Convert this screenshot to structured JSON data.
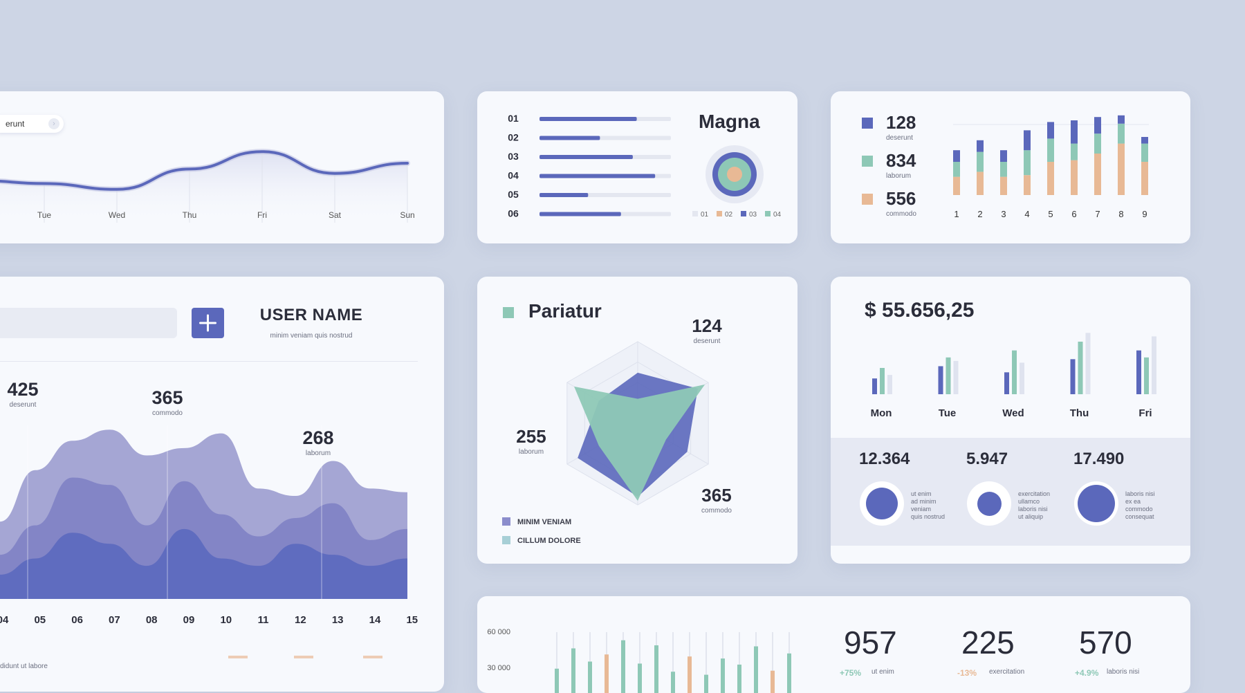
{
  "colors": {
    "primary": "#5b68bb",
    "teal": "#8ec8b6",
    "peach": "#e8b995",
    "light": "#dfe3ef",
    "lavender": "#a6a9d6"
  },
  "wave_card": {
    "pill_label": "erunt",
    "days": [
      "Tue",
      "Wed",
      "Thu",
      "Fri",
      "Sat",
      "Sun"
    ]
  },
  "magna_card": {
    "title": "Magna",
    "rows": [
      {
        "label": "01",
        "value": 0.74
      },
      {
        "label": "02",
        "value": 0.46
      },
      {
        "label": "03",
        "value": 0.71
      },
      {
        "label": "04",
        "value": 0.88
      },
      {
        "label": "05",
        "value": 0.37
      },
      {
        "label": "06",
        "value": 0.62
      }
    ],
    "legend": [
      "01",
      "02",
      "03",
      "04"
    ]
  },
  "stack_card": {
    "stats": [
      {
        "value": "128",
        "label": "deserunt"
      },
      {
        "value": "834",
        "label": "laborum"
      },
      {
        "value": "556",
        "label": "commodo"
      }
    ]
  },
  "user_card": {
    "name": "USER NAME",
    "subtitle": "minim veniam quis nostrud",
    "add_icon": "plus-icon",
    "peaks": [
      {
        "value": "425",
        "label": "deserunt"
      },
      {
        "value": "365",
        "label": "commodo"
      },
      {
        "value": "268",
        "label": "laborum"
      }
    ],
    "footer": "didunt ut labore"
  },
  "pariatur_card": {
    "title": "Pariatur",
    "labels": [
      {
        "value": "124",
        "label": "deserunt"
      },
      {
        "value": "255",
        "label": "laborum"
      },
      {
        "value": "365",
        "label": "commodo"
      }
    ],
    "legend": [
      "MINIM VENIAM",
      "CILLUM DOLORE"
    ]
  },
  "money_card": {
    "amount": "$ 55.656,25",
    "stats": [
      {
        "value": "12.364",
        "lines": [
          "ut enim",
          "ad minim",
          "veniam",
          "quis nostrud"
        ],
        "fill": 0.65
      },
      {
        "value": "5.947",
        "lines": [
          "exercitation",
          "ullamco",
          "laboris nisi",
          "ut aliquip"
        ],
        "fill": 0.35
      },
      {
        "value": "17.490",
        "lines": [
          "laboris nisi",
          "ex ea",
          "commodo",
          "consequat"
        ],
        "fill": 0.85
      }
    ]
  },
  "bottom_card": {
    "yticks": [
      "60 000",
      "30 000"
    ],
    "stats": [
      {
        "value": "957",
        "label": "ut enim",
        "delta": "+75%"
      },
      {
        "value": "225",
        "label": "exercitation",
        "delta": "-13%"
      },
      {
        "value": "570",
        "label": "laboris nisi",
        "delta": "+4.9%"
      }
    ]
  },
  "chart_data": [
    {
      "type": "line",
      "x": [
        "Tue",
        "Wed",
        "Thu",
        "Fri",
        "Sat",
        "Sun"
      ],
      "series": [
        {
          "values": [
            46,
            42,
            56,
            68,
            53,
            60
          ]
        }
      ],
      "ylim": [
        0,
        100
      ]
    },
    {
      "type": "bar",
      "categories": [
        "01",
        "02",
        "03",
        "04",
        "05",
        "06"
      ],
      "values": [
        0.74,
        0.46,
        0.71,
        0.88,
        0.37,
        0.62
      ],
      "ylim": [
        0,
        1
      ]
    },
    {
      "type": "bar",
      "stacked": true,
      "categories": [
        "1",
        "2",
        "3",
        "4",
        "5",
        "6",
        "7",
        "8",
        "9"
      ],
      "series": [
        {
          "name": "commodo",
          "color": "#e8b995",
          "values": [
            22,
            28,
            22,
            24,
            40,
            42,
            50,
            62,
            40
          ]
        },
        {
          "name": "laborum",
          "color": "#8ec8b6",
          "values": [
            18,
            24,
            18,
            30,
            28,
            20,
            24,
            24,
            22
          ]
        },
        {
          "name": "deserunt",
          "color": "#5b68bb",
          "values": [
            14,
            14,
            14,
            24,
            20,
            28,
            20,
            10,
            8
          ]
        }
      ],
      "ylim": [
        0,
        100
      ]
    },
    {
      "type": "area",
      "x": [
        "05",
        "06",
        "07",
        "08",
        "09",
        "10",
        "11",
        "12",
        "13",
        "14",
        "15"
      ],
      "series": [
        {
          "values": [
            70,
            86,
            92,
            78,
            82,
            90,
            60,
            56,
            75,
            60,
            58
          ]
        },
        {
          "values": [
            40,
            66,
            62,
            40,
            64,
            46,
            34,
            44,
            52,
            32,
            38
          ]
        },
        {
          "values": [
            22,
            36,
            30,
            18,
            38,
            22,
            18,
            30,
            24,
            18,
            22
          ]
        }
      ],
      "ylim": [
        0,
        100
      ]
    },
    {
      "type": "radar",
      "axes": 6,
      "series": [
        {
          "name": "MINIM VENIAM",
          "values": [
            0.62,
            0.85,
            0.7,
            0.9,
            0.85,
            0.55
          ]
        },
        {
          "name": "CILLUM DOLORE",
          "values": [
            0.3,
            0.95,
            0.4,
            0.95,
            0.55,
            0.9
          ]
        }
      ]
    },
    {
      "type": "bar",
      "categories": [
        "Mon",
        "Tue",
        "Wed",
        "Thu",
        "Fri"
      ],
      "series": [
        {
          "color": "#5b68bb",
          "values": [
            18,
            32,
            25,
            40,
            50
          ]
        },
        {
          "color": "#8ec8b6",
          "values": [
            30,
            42,
            50,
            60,
            42
          ]
        },
        {
          "color": "#dfe3ef",
          "values": [
            22,
            38,
            36,
            70,
            66
          ]
        }
      ],
      "ylim": [
        0,
        75
      ]
    },
    {
      "type": "bar",
      "ylim": [
        0,
        60000
      ],
      "values": [
        24000,
        44000,
        31000,
        38000,
        52000,
        29000,
        47000,
        21000,
        36000,
        18000,
        34000,
        28000,
        46000,
        22000,
        39000
      ]
    }
  ]
}
